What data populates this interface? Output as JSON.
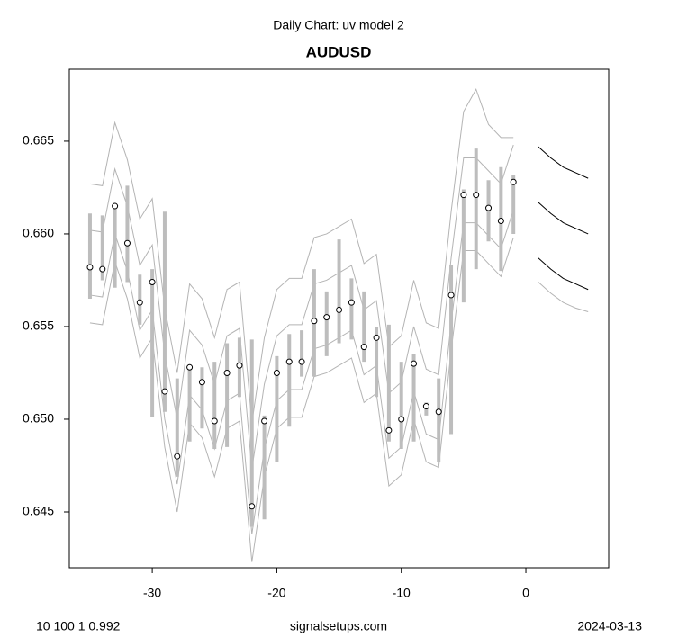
{
  "chart_data": {
    "type": "range-forecast",
    "title": "Daily Chart: uv model 2",
    "subtitle": "AUDUSD",
    "x": [
      -35,
      -34,
      -33,
      -32,
      -31,
      -30,
      -29,
      -28,
      -27,
      -26,
      -25,
      -24,
      -23,
      -22,
      -21,
      -20,
      -19,
      -18,
      -17,
      -16,
      -15,
      -14,
      -13,
      -12,
      -11,
      -10,
      -9,
      -8,
      -7,
      -6,
      -5,
      -4,
      -3,
      -2,
      -1
    ],
    "close": [
      0.6582,
      0.6581,
      0.6615,
      0.6595,
      0.6563,
      0.6574,
      0.6515,
      0.648,
      0.6528,
      0.652,
      0.6499,
      0.6525,
      0.6529,
      0.6453,
      0.6499,
      0.6525,
      0.6531,
      0.6531,
      0.6553,
      0.6555,
      0.6559,
      0.6563,
      0.6539,
      0.6544,
      0.6494,
      0.65,
      0.653,
      0.6507,
      0.6504,
      0.6567,
      0.6621,
      0.6621,
      0.6614,
      0.6607,
      0.6628
    ],
    "high": [
      0.6611,
      0.661,
      0.6615,
      0.6626,
      0.6578,
      0.6581,
      0.6612,
      0.6522,
      0.6529,
      0.6528,
      0.6531,
      0.6541,
      0.6544,
      0.6543,
      0.6502,
      0.6534,
      0.6546,
      0.6548,
      0.6581,
      0.6569,
      0.6597,
      0.6576,
      0.6569,
      0.655,
      0.6551,
      0.6531,
      0.6535,
      0.6509,
      0.6522,
      0.6583,
      0.6624,
      0.6646,
      0.6629,
      0.6636,
      0.6632
    ],
    "low": [
      0.6565,
      0.6575,
      0.6571,
      0.6574,
      0.6551,
      0.6501,
      0.6504,
      0.6469,
      0.6488,
      0.6495,
      0.6484,
      0.6485,
      0.6512,
      0.6442,
      0.6446,
      0.6477,
      0.6496,
      0.6523,
      0.6523,
      0.6534,
      0.6541,
      0.6543,
      0.6531,
      0.6512,
      0.6488,
      0.6484,
      0.6488,
      0.6502,
      0.6477,
      0.6492,
      0.6563,
      0.6581,
      0.6596,
      0.658,
      0.66
    ],
    "bar_color": "#bdbdbd",
    "bands": [
      {
        "color": "#b4b4b4",
        "values": [
          0.6627,
          0.6626,
          0.666,
          0.664,
          0.6608,
          0.6619,
          0.656,
          0.6525,
          0.6573,
          0.6565,
          0.6544,
          0.657,
          0.6574,
          0.6498,
          0.6544,
          0.657,
          0.6576,
          0.6576,
          0.6598,
          0.66,
          0.6604,
          0.6608,
          0.6584,
          0.6589,
          0.6539,
          0.6545,
          0.6575,
          0.6552,
          0.6549,
          0.6612,
          0.6666,
          0.6678,
          0.6659,
          0.6652,
          0.6652
        ]
      },
      {
        "color": "#b4b4b4",
        "values": [
          0.6602,
          0.6601,
          0.6635,
          0.6615,
          0.6583,
          0.6594,
          0.6535,
          0.65,
          0.6548,
          0.654,
          0.6519,
          0.6545,
          0.6549,
          0.6473,
          0.6519,
          0.6545,
          0.6551,
          0.6551,
          0.6573,
          0.6575,
          0.6579,
          0.6583,
          0.6559,
          0.6564,
          0.6514,
          0.652,
          0.655,
          0.6527,
          0.6524,
          0.6587,
          0.6641,
          0.6641,
          0.6634,
          0.6627,
          0.6648
        ]
      },
      {
        "color": "#b4b4b4",
        "values": [
          0.6567,
          0.6566,
          0.66,
          0.658,
          0.6548,
          0.6559,
          0.65,
          0.6465,
          0.6513,
          0.6505,
          0.6484,
          0.651,
          0.6514,
          0.6438,
          0.6484,
          0.651,
          0.6516,
          0.6516,
          0.6538,
          0.654,
          0.6544,
          0.6548,
          0.6524,
          0.6529,
          0.6479,
          0.6485,
          0.6515,
          0.6492,
          0.6489,
          0.6552,
          0.6606,
          0.6606,
          0.6599,
          0.6592,
          0.6613
        ]
      },
      {
        "color": "#b4b4b4",
        "values": [
          0.6552,
          0.6551,
          0.6585,
          0.6565,
          0.6533,
          0.6544,
          0.6485,
          0.645,
          0.6498,
          0.649,
          0.6469,
          0.6495,
          0.6499,
          0.6423,
          0.6469,
          0.6495,
          0.6501,
          0.6501,
          0.6523,
          0.6525,
          0.6529,
          0.6533,
          0.6509,
          0.6514,
          0.6464,
          0.647,
          0.65,
          0.6477,
          0.6474,
          0.6537,
          0.6591,
          0.6591,
          0.6584,
          0.6577,
          0.6598
        ]
      }
    ],
    "forecast_x": [
      1,
      2,
      3,
      4,
      5
    ],
    "forecast": [
      {
        "color": "#000000",
        "values": [
          0.6647,
          0.6641,
          0.6636,
          0.6633,
          0.663
        ]
      },
      {
        "color": "#000000",
        "values": [
          0.6617,
          0.6611,
          0.6606,
          0.6603,
          0.66
        ]
      },
      {
        "color": "#000000",
        "values": [
          0.6587,
          0.6581,
          0.6576,
          0.6573,
          0.657
        ]
      },
      {
        "color": "#b4b4b4",
        "values": [
          0.6574,
          0.6568,
          0.6563,
          0.656,
          0.6558
        ]
      }
    ],
    "xlim": [
      -36.66,
      6.65
    ],
    "ylim": [
      0.64199,
      0.66888
    ],
    "xticks": [
      -30,
      -20,
      -10,
      0
    ],
    "yticks": [
      0.645,
      {
        "value": 0.65,
        "label": "0.650"
      },
      0.655,
      {
        "value": 0.66,
        "label": "0.660"
      },
      0.665
    ],
    "footer": {
      "left": "10 100 1 0.992",
      "center": "signalsetups.com",
      "right": "2024-03-13"
    }
  }
}
